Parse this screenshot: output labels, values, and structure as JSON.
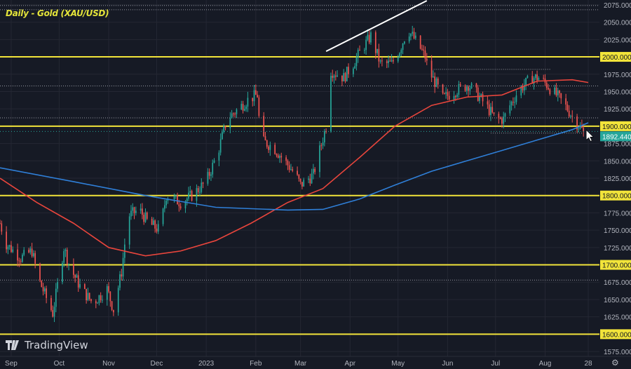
{
  "title": "Daily - Gold (XAU/USD)",
  "brand": "TradingView",
  "colors": {
    "background": "#161a25",
    "grid": "#242733",
    "up": "#26a69a",
    "down": "#ef5350",
    "level": "#f2e43a",
    "ma_fast": "#e8453c",
    "ma_slow": "#2f7fd8",
    "last_price": "#26a69a",
    "text": "#b2b5be"
  },
  "icons": {
    "settings": "gear-icon",
    "cursor": "cursor-arrow-icon",
    "logo": "tradingview-logo"
  },
  "chart_data": {
    "type": "candlestick",
    "title": "Daily - Gold (XAU/USD)",
    "ylim": [
      1568,
      2082
    ],
    "xlim": [
      "2022-08-25",
      "2023-09-04"
    ],
    "grid": true,
    "x_ticks": [
      {
        "label": "Sep",
        "date": "2022-09-01"
      },
      {
        "label": "Oct",
        "date": "2022-10-01"
      },
      {
        "label": "Nov",
        "date": "2022-11-01"
      },
      {
        "label": "Dec",
        "date": "2022-12-01"
      },
      {
        "label": "2023",
        "date": "2023-01-01"
      },
      {
        "label": "Feb",
        "date": "2023-02-01"
      },
      {
        "label": "Mar",
        "date": "2023-03-01"
      },
      {
        "label": "Apr",
        "date": "2023-04-01"
      },
      {
        "label": "May",
        "date": "2023-05-01"
      },
      {
        "label": "Jun",
        "date": "2023-06-01"
      },
      {
        "label": "Jul",
        "date": "2023-07-01"
      },
      {
        "label": "Aug",
        "date": "2023-08-01"
      },
      {
        "label": "28",
        "date": "2023-08-28"
      }
    ],
    "y_ticks": [
      "1575.000",
      "1600.000",
      "1625.000",
      "1650.000",
      "1675.000",
      "1700.000",
      "1725.000",
      "1750.000",
      "1775.000",
      "1800.000",
      "1825.000",
      "1850.000",
      "1875.000",
      "1900.000",
      "1925.000",
      "1950.000",
      "1975.000",
      "2000.000",
      "2025.000",
      "2050.000",
      "2075.000"
    ],
    "last_price": {
      "value": 1892.44,
      "label": "1892.440"
    },
    "horizontal_levels": [
      {
        "value": 2000,
        "label": "2000.000"
      },
      {
        "value": 1900,
        "label": "1900.000"
      },
      {
        "value": 1800,
        "label": "1800.000"
      },
      {
        "value": 1700,
        "label": "1700.000"
      },
      {
        "value": 1600,
        "label": "1600.000"
      }
    ],
    "dotted_levels": [
      2074,
      2068,
      1958,
      1912,
      1678
    ],
    "dotted_segments": [
      {
        "value": 1982,
        "from": "2023-05-22",
        "to": "2023-08-05"
      },
      {
        "value": 1890,
        "from": "2023-06-28",
        "to": "2023-08-25"
      }
    ],
    "trendline": {
      "from": [
        "2023-03-17",
        2008
      ],
      "to": [
        "2023-05-19",
        2081
      ]
    },
    "close_path": [
      [
        "2022-08-25",
        1760
      ],
      [
        "2022-08-29",
        1730
      ],
      [
        "2022-09-07",
        1710
      ],
      [
        "2022-09-14",
        1720
      ],
      [
        "2022-09-18",
        1680
      ],
      [
        "2022-09-27",
        1630
      ],
      [
        "2022-10-04",
        1725
      ],
      [
        "2022-10-08",
        1695
      ],
      [
        "2022-10-15",
        1665
      ],
      [
        "2022-10-22",
        1645
      ],
      [
        "2022-10-31",
        1665
      ],
      [
        "2022-11-04",
        1635
      ],
      [
        "2022-11-09",
        1690
      ],
      [
        "2022-11-13",
        1770
      ],
      [
        "2022-11-20",
        1780
      ],
      [
        "2022-11-26",
        1760
      ],
      [
        "2022-12-03",
        1750
      ],
      [
        "2022-12-07",
        1800
      ],
      [
        "2022-12-16",
        1790
      ],
      [
        "2022-12-23",
        1800
      ],
      [
        "2023-01-01",
        1820
      ],
      [
        "2023-01-08",
        1860
      ],
      [
        "2023-01-14",
        1910
      ],
      [
        "2023-01-21",
        1925
      ],
      [
        "2023-01-28",
        1940
      ],
      [
        "2023-02-02",
        1945
      ],
      [
        "2023-02-04",
        1880
      ],
      [
        "2023-02-12",
        1870
      ],
      [
        "2023-02-19",
        1850
      ],
      [
        "2023-02-26",
        1830
      ],
      [
        "2023-03-01",
        1815
      ],
      [
        "2023-03-09",
        1830
      ],
      [
        "2023-03-17",
        1900
      ],
      [
        "2023-03-20",
        1980
      ],
      [
        "2023-03-28",
        1970
      ],
      [
        "2023-04-03",
        1990
      ],
      [
        "2023-04-08",
        2010
      ],
      [
        "2023-04-14",
        2030
      ],
      [
        "2023-04-20",
        1990
      ],
      [
        "2023-04-27",
        1990
      ],
      [
        "2023-05-02",
        2010
      ],
      [
        "2023-05-07",
        2040
      ],
      [
        "2023-05-13",
        2020
      ],
      [
        "2023-05-18",
        2000
      ],
      [
        "2023-05-20",
        1980
      ],
      [
        "2023-05-25",
        1960
      ],
      [
        "2023-05-29",
        1940
      ],
      [
        "2023-06-05",
        1950
      ],
      [
        "2023-06-14",
        1960
      ],
      [
        "2023-06-18",
        1950
      ],
      [
        "2023-06-25",
        1930
      ],
      [
        "2023-07-01",
        1910
      ],
      [
        "2023-07-06",
        1910
      ],
      [
        "2023-07-10",
        1930
      ],
      [
        "2023-07-15",
        1950
      ],
      [
        "2023-07-19",
        1960
      ],
      [
        "2023-07-24",
        1970
      ],
      [
        "2023-07-28",
        1970
      ],
      [
        "2023-08-02",
        1960
      ],
      [
        "2023-08-06",
        1950
      ],
      [
        "2023-08-10",
        1940
      ],
      [
        "2023-08-15",
        1925
      ],
      [
        "2023-08-19",
        1910
      ],
      [
        "2023-08-25",
        1892.44
      ]
    ],
    "series": [
      {
        "type": "line",
        "color": "#e8453c",
        "points": [
          [
            "2022-08-25",
            1825
          ],
          [
            "2022-09-17",
            1790
          ],
          [
            "2022-10-10",
            1760
          ],
          [
            "2022-11-01",
            1725
          ],
          [
            "2022-11-24",
            1713
          ],
          [
            "2022-12-16",
            1720
          ],
          [
            "2023-01-07",
            1735
          ],
          [
            "2023-01-29",
            1760
          ],
          [
            "2023-02-21",
            1790
          ],
          [
            "2023-03-15",
            1810
          ],
          [
            "2023-04-07",
            1855
          ],
          [
            "2023-04-29",
            1900
          ],
          [
            "2023-05-22",
            1930
          ],
          [
            "2023-06-13",
            1942
          ],
          [
            "2023-07-05",
            1945
          ],
          [
            "2023-07-27",
            1965
          ],
          [
            "2023-08-18",
            1967
          ],
          [
            "2023-08-28",
            1963
          ]
        ]
      },
      {
        "type": "line",
        "color": "#2f7fd8",
        "points": [
          [
            "2022-08-25",
            1840
          ],
          [
            "2022-10-10",
            1820
          ],
          [
            "2022-11-24",
            1800
          ],
          [
            "2023-01-07",
            1783
          ],
          [
            "2023-02-21",
            1779
          ],
          [
            "2023-03-15",
            1780
          ],
          [
            "2023-04-07",
            1795
          ],
          [
            "2023-04-29",
            1815
          ],
          [
            "2023-05-22",
            1835
          ],
          [
            "2023-06-13",
            1850
          ],
          [
            "2023-07-05",
            1865
          ],
          [
            "2023-07-27",
            1880
          ],
          [
            "2023-08-18",
            1895
          ],
          [
            "2023-08-28",
            1905
          ]
        ]
      }
    ]
  }
}
